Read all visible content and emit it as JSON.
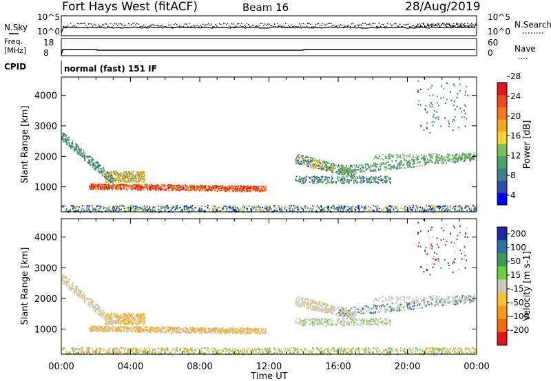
{
  "header": {
    "title": "Fort Hays West (fitACF)",
    "beam": "Beam 16",
    "date": "28/Aug/2019"
  },
  "noise_panel": {
    "left_label": "N.Sky",
    "right_label": "N.Search",
    "tick_top": "10^5",
    "tick_bottom": "10^0"
  },
  "freq_panel": {
    "left_label_line1": "Freq.",
    "left_label_line2": "[MHz]",
    "right_label": "Nave",
    "left_ticks": [
      "18",
      "8"
    ],
    "right_ticks": [
      "60",
      "0"
    ]
  },
  "cpid": {
    "label": "CPID",
    "value": "normal (fast) 151 IF"
  },
  "chart_data": [
    {
      "type": "heatmap",
      "name": "power",
      "ylabel": "Slant Range [km]",
      "ylim": [
        180,
        4600
      ],
      "yticks": [
        1000,
        2000,
        3000,
        4000
      ],
      "xticks": [
        "00:00",
        "04:00",
        "08:00",
        "12:00",
        "16:00",
        "20:00",
        "00:00"
      ],
      "colorbar": {
        "label": "Power [dB]",
        "ticks": [
          "4",
          "8",
          "12",
          "16",
          "20",
          "24",
          "28"
        ],
        "colors": [
          "#0000ff",
          "#2c4fa8",
          "#3f7f8a",
          "#4fa26a",
          "#7cbc5a",
          "#f5d22a",
          "#f5a623",
          "#f07a1e",
          "#ea4a1c",
          "#e4141b"
        ]
      }
    },
    {
      "type": "heatmap",
      "name": "velocity",
      "ylabel": "Slant Range [km]",
      "xlabel": "Time UT",
      "ylim": [
        180,
        4600
      ],
      "yticks": [
        1000,
        2000,
        3000,
        4000
      ],
      "xticks": [
        "00:00",
        "04:00",
        "08:00",
        "12:00",
        "16:00",
        "20:00",
        "00:00"
      ],
      "colorbar": {
        "label": "Velocity [m s-1]",
        "ticks": [
          "200",
          "100",
          "50",
          "15",
          "-15",
          "-50",
          "-100",
          "-200"
        ],
        "colors": [
          "#1c2aa0",
          "#2e6fa6",
          "#3e9a5a",
          "#6ccc3c",
          "#c8c8c0",
          "#f5c23a",
          "#f59a1e",
          "#f26a18",
          "#e4141b"
        ]
      }
    }
  ]
}
